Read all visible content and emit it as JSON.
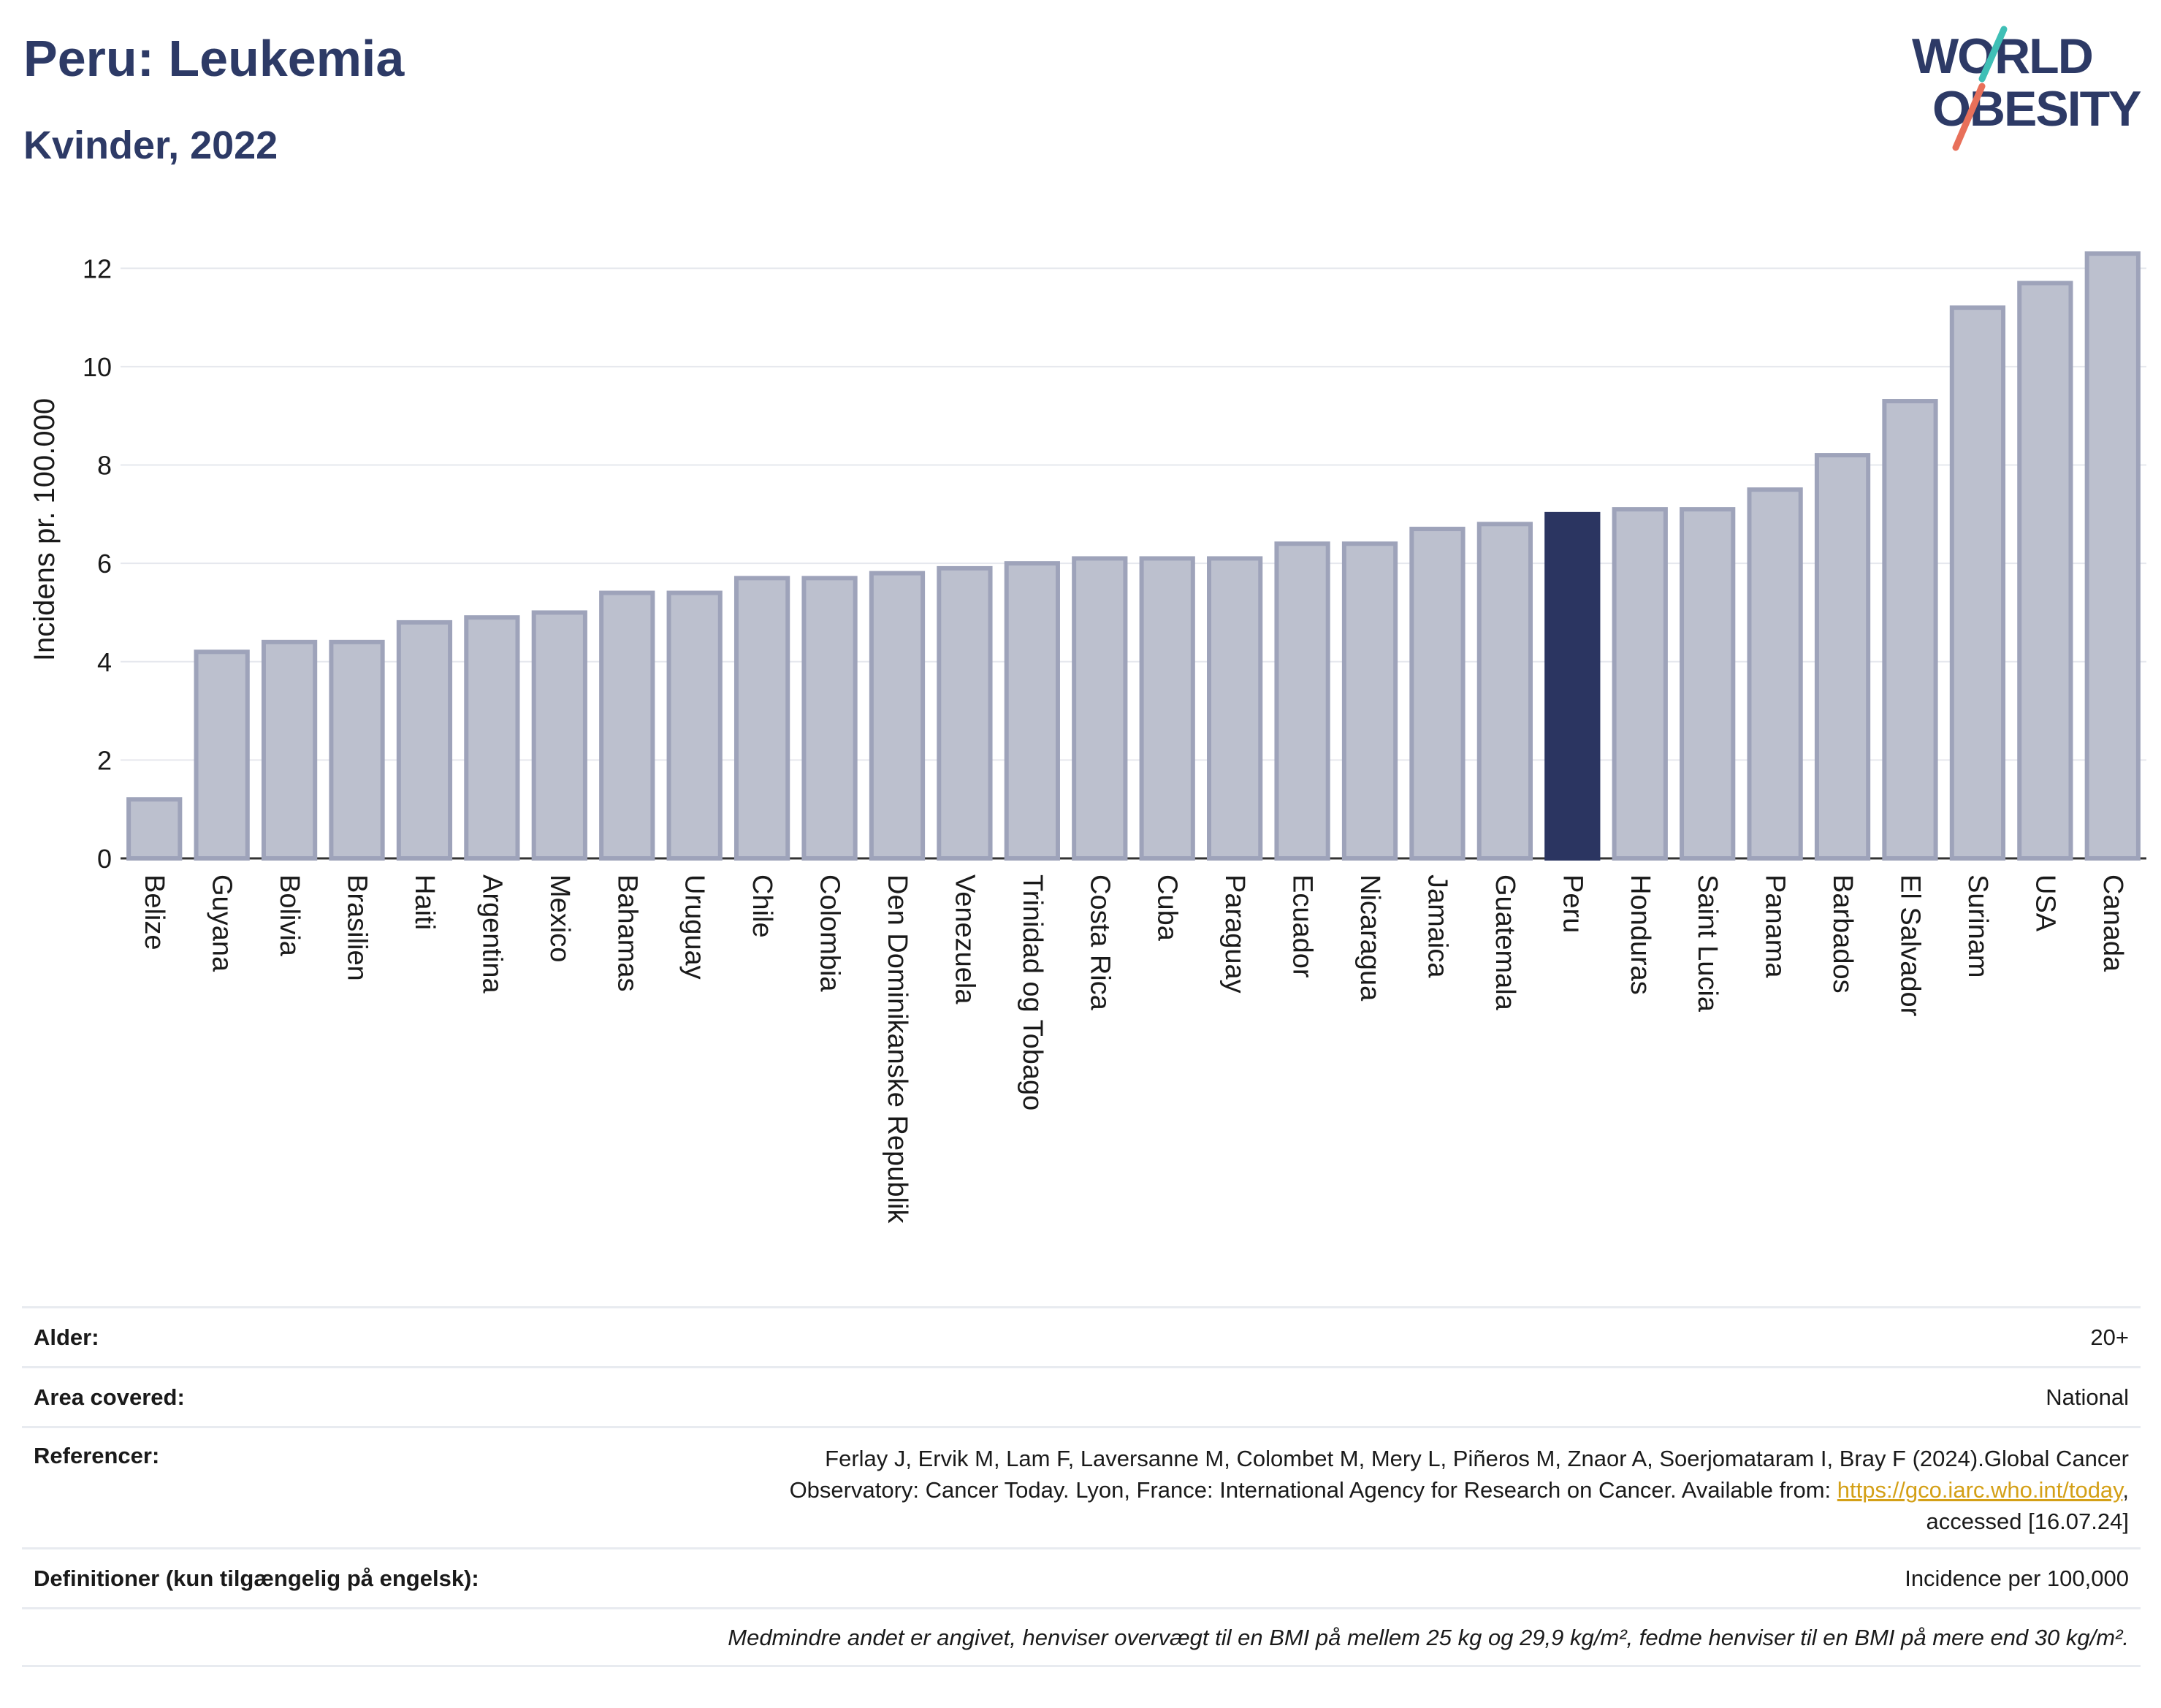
{
  "header": {
    "title": "Peru: Leukemia",
    "subtitle": "Kvinder, 2022"
  },
  "logo": {
    "line1": "WORLD",
    "line2": "OBESITY",
    "colors": [
      "#2d3a66",
      "#3fbfb6",
      "#e8705a"
    ]
  },
  "chart_data": {
    "type": "bar",
    "title": "Peru: Leukemia",
    "subtitle": "Kvinder, 2022",
    "xlabel": "",
    "ylabel": "Incidens pr. 100.000",
    "ylim": [
      0,
      13
    ],
    "yticks": [
      0,
      2,
      4,
      6,
      8,
      10,
      12
    ],
    "grid": true,
    "highlight": "Peru",
    "colors": {
      "bar": "#bcc0ce",
      "bar_border": "#9ea3ba",
      "highlight": "#2b3561"
    },
    "categories": [
      "Belize",
      "Guyana",
      "Bolivia",
      "Brasilien",
      "Haiti",
      "Argentina",
      "Mexico",
      "Bahamas",
      "Uruguay",
      "Chile",
      "Colombia",
      "Den Dominikanske Republik",
      "Venezuela",
      "Trinidad og Tobago",
      "Costa Rica",
      "Cuba",
      "Paraguay",
      "Ecuador",
      "Nicaragua",
      "Jamaica",
      "Guatemala",
      "Peru",
      "Honduras",
      "Saint Lucia",
      "Panama",
      "Barbados",
      "El Salvador",
      "Surinam",
      "USA",
      "Canada"
    ],
    "values": [
      1.2,
      4.2,
      4.4,
      4.4,
      4.8,
      4.9,
      5.0,
      5.4,
      5.4,
      5.7,
      5.7,
      5.8,
      5.9,
      6.0,
      6.1,
      6.1,
      6.1,
      6.4,
      6.4,
      6.7,
      6.8,
      7.0,
      7.1,
      7.1,
      7.5,
      8.2,
      9.3,
      11.2,
      11.7,
      12.3
    ]
  },
  "info": {
    "age_label": "Alder:",
    "age_value": "20+",
    "area_label": "Area covered:",
    "area_value": "National",
    "ref_label": "Referencer:",
    "ref_line1": "Ferlay J, Ervik M, Lam F, Laversanne M, Colombet M, Mery L, Piñeros M, Znaor A, Soerjomataram I, Bray F (2024).Global Cancer",
    "ref_line2_pre": "Observatory: Cancer Today. Lyon, France: International Agency for Research on Cancer. Available from: ",
    "ref_link": "https://gco.iarc.who.int/today",
    "ref_line2_post": ",",
    "ref_line3": "accessed [16.07.24]",
    "def_label": "Definitioner (kun tilgængelig på engelsk):",
    "def_value": "Incidence per 100,000",
    "note": "Medmindre andet er angivet, henviser overvægt til en BMI på mellem 25 kg og 29,9 kg/m², fedme henviser til en BMI på mere end 30 kg/m²."
  }
}
